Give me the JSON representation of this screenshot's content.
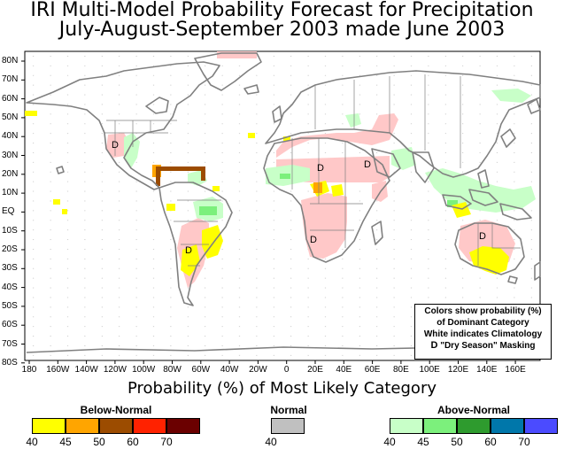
{
  "title": {
    "line1": "IRI Multi-Model Probability Forecast for Precipitation",
    "line2": "July-August-September 2003 made June 2003"
  },
  "map": {
    "lat_labels": [
      "80N",
      "70N",
      "60N",
      "50N",
      "40N",
      "30N",
      "20N",
      "10N",
      "EQ",
      "10S",
      "20S",
      "30S",
      "40S",
      "50S",
      "60S",
      "70S",
      "80S"
    ],
    "lon_labels": [
      "180",
      "160W",
      "140W",
      "120W",
      "100W",
      "80W",
      "60W",
      "40W",
      "20W",
      "0",
      "20E",
      "40E",
      "60E",
      "80E",
      "100E",
      "120E",
      "140E",
      "160E"
    ],
    "dry_season_mark": "D",
    "colors": {
      "below_40": "#ffff00",
      "below_45": "#ffa500",
      "below_50": "#a0522d",
      "normal_40": "#c0c0c0",
      "above_40": "#c8ffc8",
      "above_45": "#7cf07c",
      "dry_mask": "#ffc8c8",
      "coast": "#808080"
    }
  },
  "note": {
    "line1": "Colors show probability (%)",
    "line2": "of Dominant Category",
    "line3": "White indicates Climatology",
    "line4": "\"Dry Season\" Masking"
  },
  "legend": {
    "title": "Probability (%) of Most Likely Category",
    "below": {
      "label": "Below-Normal",
      "items": [
        {
          "value": "40",
          "color": "#ffff00"
        },
        {
          "value": "45",
          "color": "#ffa500"
        },
        {
          "value": "50",
          "color": "#9c4c00"
        },
        {
          "value": "60",
          "color": "#ff2200"
        },
        {
          "value": "70",
          "color": "#6b0000"
        }
      ]
    },
    "normal": {
      "label": "Normal",
      "items": [
        {
          "value": "40",
          "color": "#c0c0c0"
        }
      ]
    },
    "above": {
      "label": "Above-Normal",
      "items": [
        {
          "value": "40",
          "color": "#c8ffc8"
        },
        {
          "value": "45",
          "color": "#7cf07c"
        },
        {
          "value": "50",
          "color": "#2e9b2e"
        },
        {
          "value": "60",
          "color": "#0077aa"
        },
        {
          "value": "70",
          "color": "#4b4bff"
        }
      ]
    }
  }
}
